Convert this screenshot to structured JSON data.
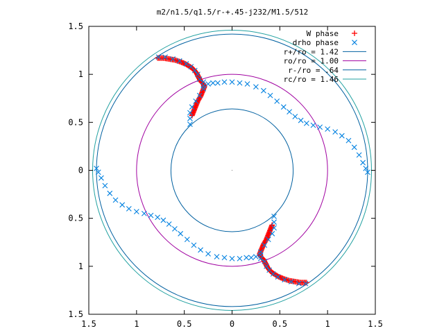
{
  "chart_data": {
    "type": "scatter",
    "title": "m2/n1.5/q1.5/r-+.45-j232/M1.5/512",
    "xlabel": "",
    "ylabel": "",
    "xlim": [
      -1.5,
      1.5
    ],
    "ylim": [
      -1.5,
      1.5
    ],
    "x_ticks": [
      {
        "value": -1.5,
        "label": "1.5"
      },
      {
        "value": -1.0,
        "label": "1"
      },
      {
        "value": -0.5,
        "label": "0.5"
      },
      {
        "value": 0.0,
        "label": "0"
      },
      {
        "value": 0.5,
        "label": "0.5"
      },
      {
        "value": 1.0,
        "label": "1"
      },
      {
        "value": 1.5,
        "label": "1.5"
      }
    ],
    "y_ticks": [
      {
        "value": 1.5,
        "label": "1.5"
      },
      {
        "value": 1.0,
        "label": "1"
      },
      {
        "value": 0.5,
        "label": "0.5"
      },
      {
        "value": 0.0,
        "label": "0"
      },
      {
        "value": -0.5,
        "label": "0.5"
      },
      {
        "value": -1.0,
        "label": "1"
      },
      {
        "value": -1.5,
        "label": "1.5"
      }
    ],
    "grid": false,
    "legend_position": "top-right",
    "series": [
      {
        "name": "W phase",
        "kind": "points",
        "marker": "+",
        "color": "#ff0000",
        "points": [
          [
            -0.78,
            1.17
          ],
          [
            -0.72,
            1.17
          ],
          [
            -0.66,
            1.16
          ],
          [
            -0.6,
            1.15
          ],
          [
            -0.54,
            1.13
          ],
          [
            -0.49,
            1.11
          ],
          [
            -0.44,
            1.08
          ],
          [
            -0.4,
            1.05
          ],
          [
            -0.37,
            1.01
          ],
          [
            -0.35,
            0.97
          ],
          [
            -0.33,
            0.93
          ],
          [
            -0.3,
            0.9
          ],
          [
            -0.29,
            0.87
          ],
          [
            -0.31,
            0.82
          ],
          [
            -0.33,
            0.77
          ],
          [
            -0.36,
            0.72
          ],
          [
            -0.38,
            0.67
          ],
          [
            -0.4,
            0.62
          ],
          [
            -0.42,
            0.57
          ],
          [
            0.78,
            -1.17
          ],
          [
            0.72,
            -1.17
          ],
          [
            0.66,
            -1.16
          ],
          [
            0.6,
            -1.15
          ],
          [
            0.54,
            -1.13
          ],
          [
            0.49,
            -1.11
          ],
          [
            0.44,
            -1.08
          ],
          [
            0.4,
            -1.05
          ],
          [
            0.37,
            -1.01
          ],
          [
            0.35,
            -0.97
          ],
          [
            0.33,
            -0.93
          ],
          [
            0.3,
            -0.9
          ],
          [
            0.29,
            -0.87
          ],
          [
            0.31,
            -0.82
          ],
          [
            0.33,
            -0.77
          ],
          [
            0.36,
            -0.72
          ],
          [
            0.38,
            -0.67
          ],
          [
            0.4,
            -0.62
          ],
          [
            0.42,
            -0.57
          ]
        ]
      },
      {
        "name": "drho phase",
        "kind": "points",
        "marker": "x",
        "color": "#0080e0",
        "points": [
          [
            -0.77,
            1.18
          ],
          [
            -0.7,
            1.18
          ],
          [
            -0.62,
            1.16
          ],
          [
            -0.55,
            1.14
          ],
          [
            -0.48,
            1.11
          ],
          [
            -0.43,
            1.08
          ],
          [
            -0.39,
            1.04
          ],
          [
            -0.36,
            1.0
          ],
          [
            -0.34,
            0.95
          ],
          [
            -0.3,
            0.92
          ],
          [
            -0.3,
            0.85
          ],
          [
            -0.34,
            0.78
          ],
          [
            -0.38,
            0.72
          ],
          [
            -0.42,
            0.66
          ],
          [
            -0.44,
            0.6
          ],
          [
            -0.44,
            0.54
          ],
          [
            -0.44,
            0.48
          ],
          [
            -0.3,
            0.88
          ],
          [
            -0.25,
            0.9
          ],
          [
            -0.2,
            0.91
          ],
          [
            -0.15,
            0.91
          ],
          [
            -0.08,
            0.92
          ],
          [
            0.0,
            0.92
          ],
          [
            0.08,
            0.91
          ],
          [
            0.16,
            0.9
          ],
          [
            0.25,
            0.87
          ],
          [
            0.33,
            0.83
          ],
          [
            0.4,
            0.78
          ],
          [
            0.47,
            0.72
          ],
          [
            0.54,
            0.66
          ],
          [
            0.6,
            0.61
          ],
          [
            0.66,
            0.56
          ],
          [
            0.72,
            0.52
          ],
          [
            0.78,
            0.49
          ],
          [
            0.85,
            0.47
          ],
          [
            0.92,
            0.45
          ],
          [
            1.0,
            0.43
          ],
          [
            1.08,
            0.4
          ],
          [
            1.15,
            0.36
          ],
          [
            1.22,
            0.31
          ],
          [
            1.28,
            0.24
          ],
          [
            1.33,
            0.16
          ],
          [
            1.37,
            0.08
          ],
          [
            1.4,
            0.02
          ],
          [
            1.42,
            -0.02
          ],
          [
            0.77,
            -1.18
          ],
          [
            0.7,
            -1.18
          ],
          [
            0.62,
            -1.16
          ],
          [
            0.55,
            -1.14
          ],
          [
            0.48,
            -1.11
          ],
          [
            0.43,
            -1.08
          ],
          [
            0.39,
            -1.04
          ],
          [
            0.36,
            -1.0
          ],
          [
            0.34,
            -0.95
          ],
          [
            0.3,
            -0.92
          ],
          [
            0.3,
            -0.85
          ],
          [
            0.34,
            -0.78
          ],
          [
            0.38,
            -0.72
          ],
          [
            0.42,
            -0.66
          ],
          [
            0.44,
            -0.6
          ],
          [
            0.44,
            -0.54
          ],
          [
            0.44,
            -0.48
          ],
          [
            0.3,
            -0.88
          ],
          [
            0.25,
            -0.9
          ],
          [
            0.2,
            -0.91
          ],
          [
            0.15,
            -0.91
          ],
          [
            0.08,
            -0.92
          ],
          [
            0.0,
            -0.92
          ],
          [
            -0.08,
            -0.91
          ],
          [
            -0.16,
            -0.9
          ],
          [
            -0.25,
            -0.87
          ],
          [
            -0.33,
            -0.83
          ],
          [
            -0.4,
            -0.78
          ],
          [
            -0.47,
            -0.72
          ],
          [
            -0.54,
            -0.66
          ],
          [
            -0.6,
            -0.61
          ],
          [
            -0.66,
            -0.56
          ],
          [
            -0.72,
            -0.52
          ],
          [
            -0.78,
            -0.49
          ],
          [
            -0.85,
            -0.47
          ],
          [
            -0.92,
            -0.45
          ],
          [
            -1.0,
            -0.43
          ],
          [
            -1.08,
            -0.4
          ],
          [
            -1.15,
            -0.36
          ],
          [
            -1.22,
            -0.31
          ],
          [
            -1.28,
            -0.24
          ],
          [
            -1.33,
            -0.16
          ],
          [
            -1.37,
            -0.08
          ],
          [
            -1.4,
            -0.02
          ],
          [
            -1.42,
            0.02
          ]
        ]
      },
      {
        "name": "r+/ro = 1.42",
        "kind": "circle",
        "radius": 1.42,
        "color": "#0060a0"
      },
      {
        "name": "ro/ro = 1.00",
        "kind": "circle",
        "radius": 1.0,
        "color": "#a000a0"
      },
      {
        "name": "r-/ro = .64",
        "kind": "circle",
        "radius": 0.64,
        "color": "#0060a0"
      },
      {
        "name": "rc/ro = 1.46",
        "kind": "circle",
        "radius": 1.46,
        "color": "#20a0a0"
      }
    ]
  }
}
